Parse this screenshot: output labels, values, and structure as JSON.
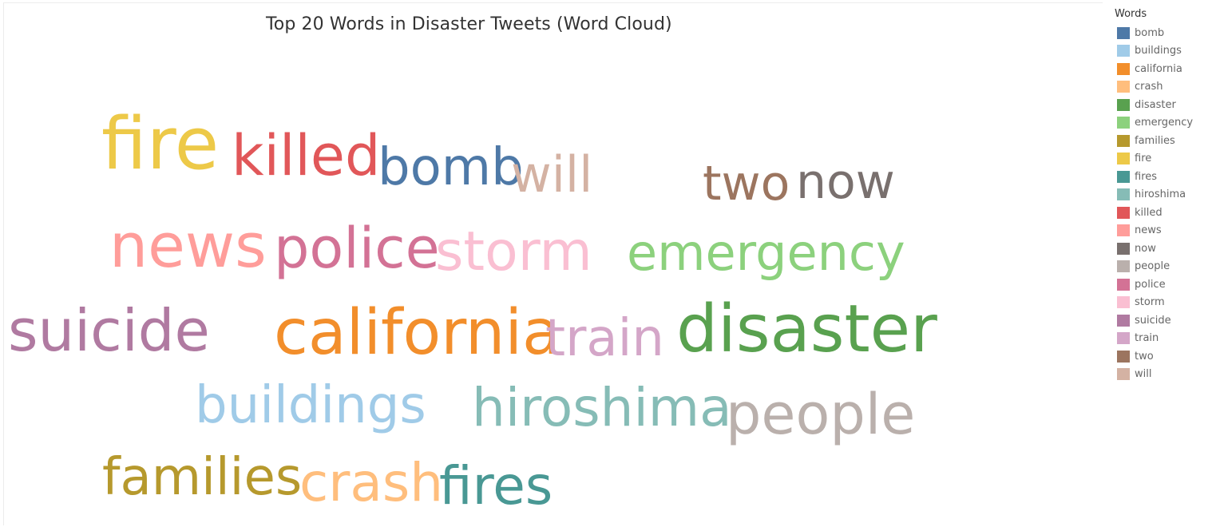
{
  "chart_data": {
    "type": "wordcloud",
    "title": "Top 20 Words in Disaster Tweets (Word Cloud)",
    "legend": {
      "title": "Words",
      "placement": "right"
    },
    "words": [
      {
        "text": "fire",
        "color": "#edc948"
      },
      {
        "text": "killed",
        "color": "#e15759"
      },
      {
        "text": "bomb",
        "color": "#4e79a7"
      },
      {
        "text": "will",
        "color": "#d4b2a3"
      },
      {
        "text": "two",
        "color": "#9c755f"
      },
      {
        "text": "now",
        "color": "#79706e"
      },
      {
        "text": "news",
        "color": "#ff9d9a"
      },
      {
        "text": "police",
        "color": "#d37295"
      },
      {
        "text": "storm",
        "color": "#fabfd2"
      },
      {
        "text": "emergency",
        "color": "#8cd17d"
      },
      {
        "text": "suicide",
        "color": "#b07aa1"
      },
      {
        "text": "california",
        "color": "#f28e2b"
      },
      {
        "text": "train",
        "color": "#d4a6c8"
      },
      {
        "text": "disaster",
        "color": "#59a14f"
      },
      {
        "text": "buildings",
        "color": "#a0cbe8"
      },
      {
        "text": "hiroshima",
        "color": "#86bcb6"
      },
      {
        "text": "people",
        "color": "#bab0ac"
      },
      {
        "text": "families",
        "color": "#b6992d"
      },
      {
        "text": "crash",
        "color": "#ffbe7d"
      },
      {
        "text": "fires",
        "color": "#499894"
      }
    ],
    "legend_entries": [
      {
        "label": "bomb",
        "color": "#4e79a7"
      },
      {
        "label": "buildings",
        "color": "#a0cbe8"
      },
      {
        "label": "california",
        "color": "#f28e2b"
      },
      {
        "label": "crash",
        "color": "#ffbe7d"
      },
      {
        "label": "disaster",
        "color": "#59a14f"
      },
      {
        "label": "emergency",
        "color": "#8cd17d"
      },
      {
        "label": "families",
        "color": "#b6992d"
      },
      {
        "label": "fire",
        "color": "#edc948"
      },
      {
        "label": "fires",
        "color": "#499894"
      },
      {
        "label": "hiroshima",
        "color": "#86bcb6"
      },
      {
        "label": "killed",
        "color": "#e15759"
      },
      {
        "label": "news",
        "color": "#ff9d9a"
      },
      {
        "label": "now",
        "color": "#79706e"
      },
      {
        "label": "people",
        "color": "#bab0ac"
      },
      {
        "label": "police",
        "color": "#d37295"
      },
      {
        "label": "storm",
        "color": "#fabfd2"
      },
      {
        "label": "suicide",
        "color": "#b07aa1"
      },
      {
        "label": "train",
        "color": "#d4a6c8"
      },
      {
        "label": "two",
        "color": "#9c755f"
      },
      {
        "label": "will",
        "color": "#d4b2a3"
      }
    ]
  }
}
